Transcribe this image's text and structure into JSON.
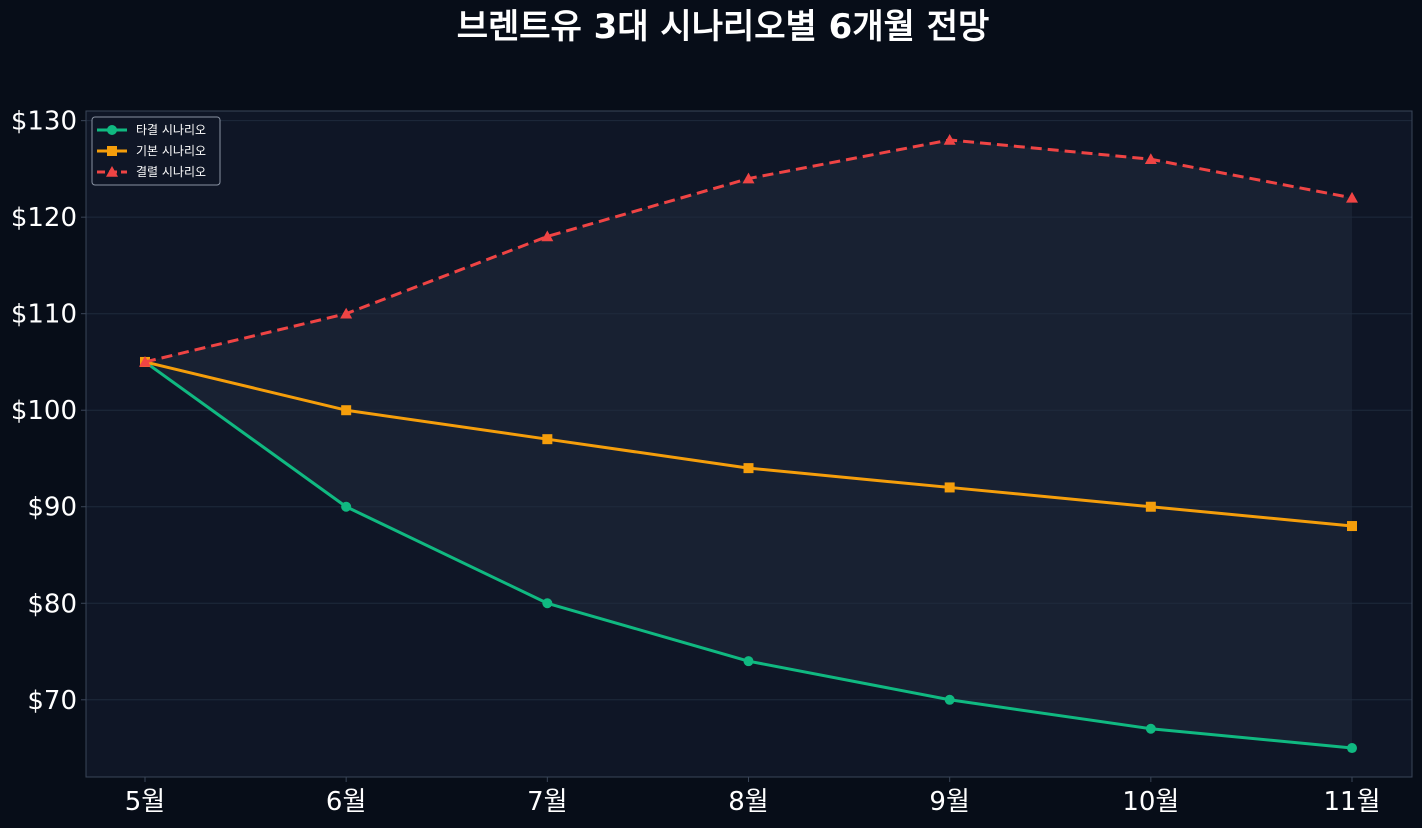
{
  "chart_data": {
    "type": "line",
    "title": "브렌트유 3대 시나리오별 6개월 전망",
    "categories": [
      "5월",
      "6월",
      "7월",
      "8월",
      "9월",
      "10월",
      "11월"
    ],
    "series": [
      {
        "name": "타결 시나리오",
        "values": [
          105,
          90,
          80,
          74,
          70,
          67,
          65
        ],
        "color": "#10b981",
        "marker": "circle",
        "dash": "solid"
      },
      {
        "name": "기본 시나리오",
        "values": [
          105,
          100,
          97,
          94,
          92,
          90,
          88
        ],
        "color": "#f59e0b",
        "marker": "square",
        "dash": "solid"
      },
      {
        "name": "결렬 시나리오",
        "values": [
          105,
          110,
          118,
          124,
          128,
          126,
          122
        ],
        "color": "#ef4444",
        "marker": "triangle",
        "dash": "dashed"
      }
    ],
    "ylim": [
      62,
      131
    ],
    "yticks": [
      70,
      80,
      90,
      100,
      110,
      120,
      130
    ],
    "ytick_labels": [
      "$70",
      "$80",
      "$90",
      "$100",
      "$110",
      "$120",
      "$130"
    ],
    "xlabel": "",
    "ylabel": "",
    "grid": true,
    "legend_position": "top-left",
    "shaded_band": {
      "from_series": 0,
      "to_series": 2,
      "color": "#1e293b"
    }
  },
  "colors": {
    "background": "#070d18",
    "plot_background": "#0f1626",
    "grid": "#1f2a3c",
    "axis": "#3a4558",
    "text": "#ffffff"
  }
}
